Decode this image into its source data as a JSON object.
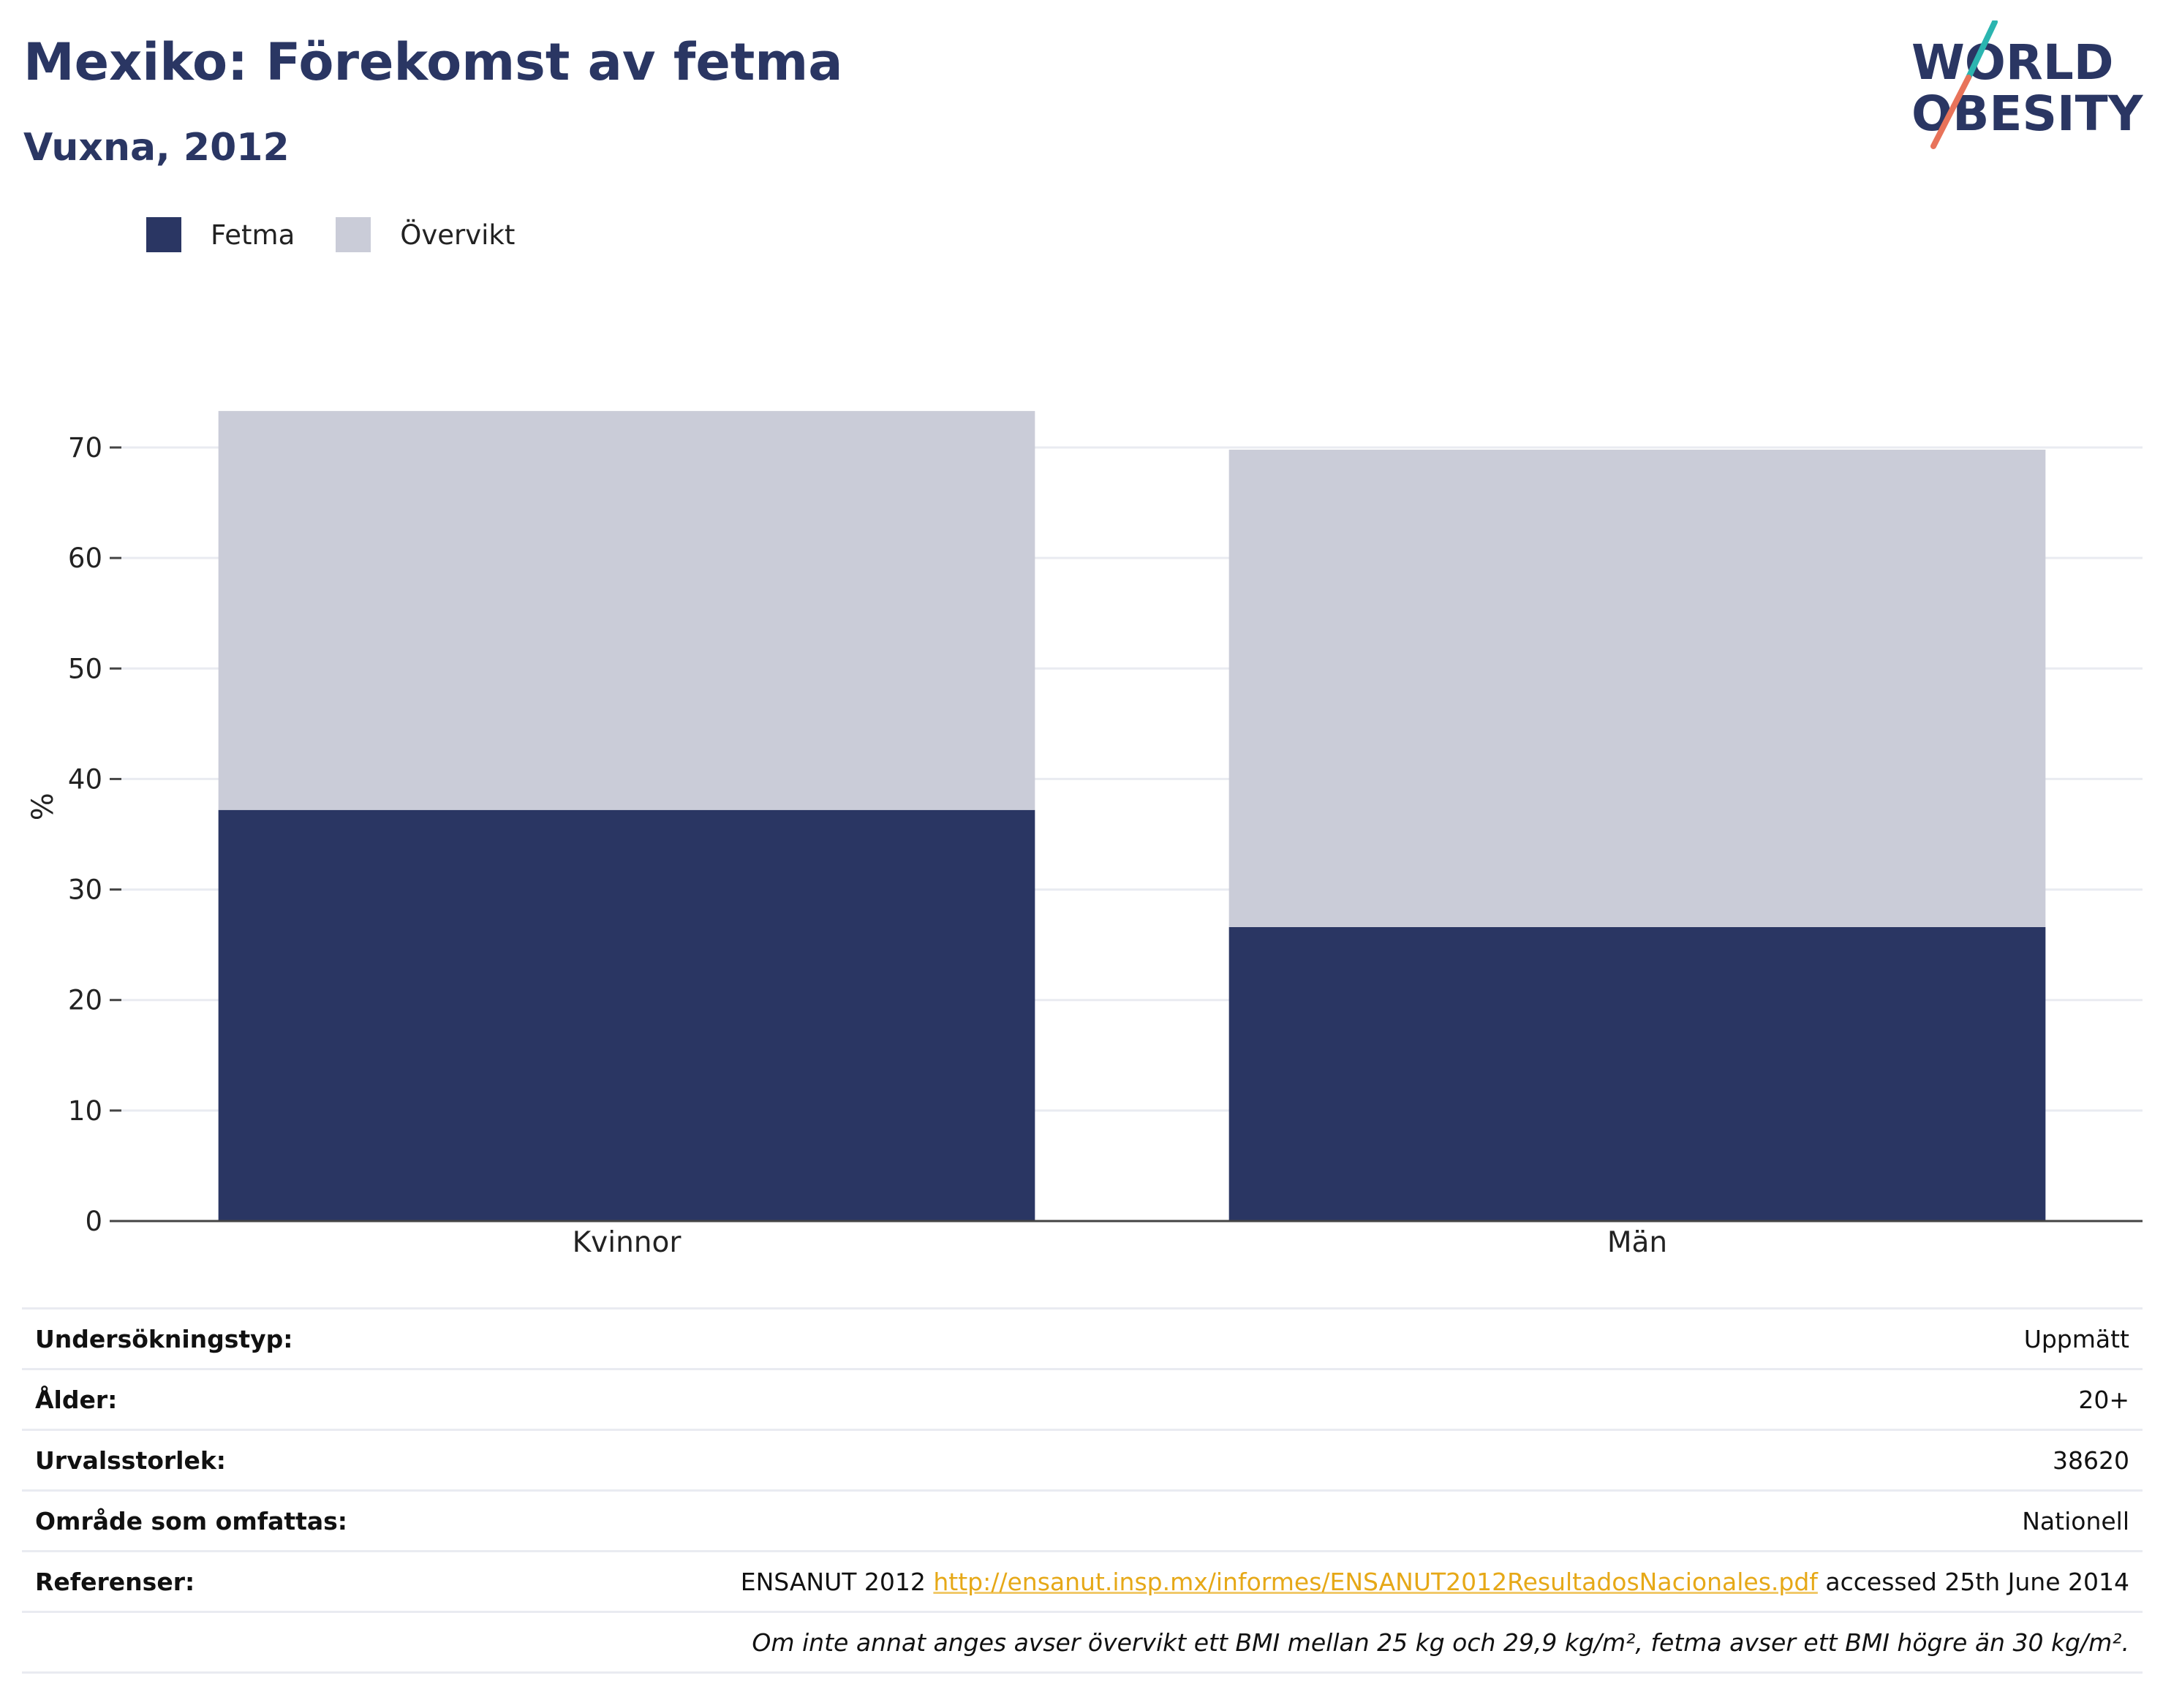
{
  "header": {
    "title": "Mexiko: Förekomst av fetma",
    "subtitle": "Vuxna, 2012"
  },
  "logo": {
    "line1": "WORLD",
    "line2": "OBESITY",
    "colors": {
      "text": "#2a3663",
      "slash_top": "#2bb5b0",
      "slash_bottom": "#e8735a"
    }
  },
  "legend": [
    {
      "label": "Fetma",
      "color": "#2a3663"
    },
    {
      "label": "Övervikt",
      "color": "#caccd8"
    }
  ],
  "chart_data": {
    "type": "bar",
    "stacked": true,
    "categories": [
      "Kvinnor",
      "Män"
    ],
    "series": [
      {
        "name": "Fetma",
        "color": "#2a3663",
        "values": [
          37.2,
          26.6
        ]
      },
      {
        "name": "Övervikt",
        "color": "#caccd8",
        "values": [
          36.1,
          43.2
        ]
      }
    ],
    "ylabel": "%",
    "xlabel": "",
    "ylim": [
      0,
      75
    ],
    "yticks": [
      0,
      10,
      20,
      30,
      40,
      50,
      60,
      70
    ],
    "grid": true,
    "legend_position": "top-left"
  },
  "info": {
    "rows": [
      {
        "label": "Undersökningstyp:",
        "value": "Uppmätt"
      },
      {
        "label": "Ålder:",
        "value": "20+"
      },
      {
        "label": "Urvalsstorlek:",
        "value": "38620"
      },
      {
        "label": "Område som omfattas:",
        "value": "Nationell"
      }
    ],
    "reference": {
      "label": "Referenser:",
      "prefix": "ENSANUT 2012 ",
      "link": "http://ensanut.insp.mx/informes/ENSANUT2012ResultadosNacionales.pdf",
      "suffix": " accessed 25th June 2014"
    },
    "note": "Om inte annat anges avser övervikt ett BMI mellan 25 kg och 29,9 kg/m², fetma avser ett BMI högre än 30 kg/m²."
  }
}
